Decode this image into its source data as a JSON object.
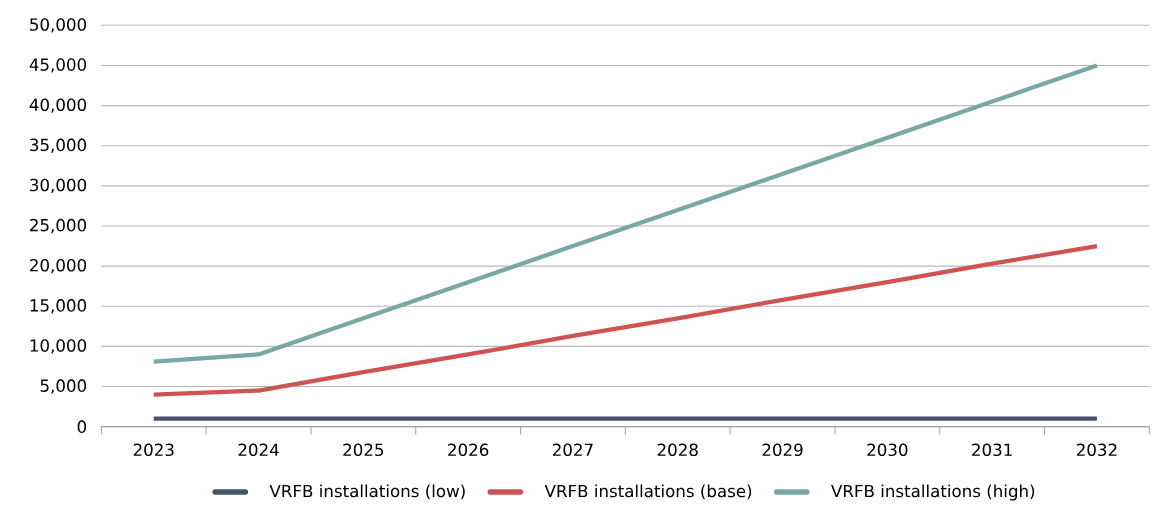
{
  "chart_data": {
    "type": "line",
    "categories": [
      "2023",
      "2024",
      "2025",
      "2026",
      "2027",
      "2028",
      "2029",
      "2030",
      "2031",
      "2032"
    ],
    "series": [
      {
        "name": "VRFB installations (low)",
        "color": "#44546a",
        "values": [
          1000,
          1000,
          1000,
          1000,
          1000,
          1000,
          1000,
          1000,
          1000,
          1000
        ]
      },
      {
        "name": "VRFB installations (base)",
        "color": "#cd5453",
        "values": [
          4000,
          4500,
          6800,
          9000,
          11300,
          13500,
          15800,
          18000,
          20300,
          22500
        ]
      },
      {
        "name": "VRFB installations (high)",
        "color": "#78a8a3",
        "values": [
          8100,
          9000,
          13500,
          18000,
          22500,
          27000,
          31500,
          36000,
          40500,
          45000
        ]
      }
    ],
    "ylim": [
      0,
      50000
    ],
    "yticks": [
      {
        "value": 0,
        "label": "0"
      },
      {
        "value": 5000,
        "label": "5,000"
      },
      {
        "value": 10000,
        "label": "10,000"
      },
      {
        "value": 15000,
        "label": "15,000"
      },
      {
        "value": 20000,
        "label": "20,000"
      },
      {
        "value": 25000,
        "label": "25,000"
      },
      {
        "value": 30000,
        "label": "30,000"
      },
      {
        "value": 35000,
        "label": "35,000"
      },
      {
        "value": 40000,
        "label": "40,000"
      },
      {
        "value": 45000,
        "label": "45,000"
      },
      {
        "value": 50000,
        "label": "50,000"
      }
    ],
    "grid": "y",
    "legend": "bottom",
    "marker": "none",
    "line_style": "solid"
  }
}
